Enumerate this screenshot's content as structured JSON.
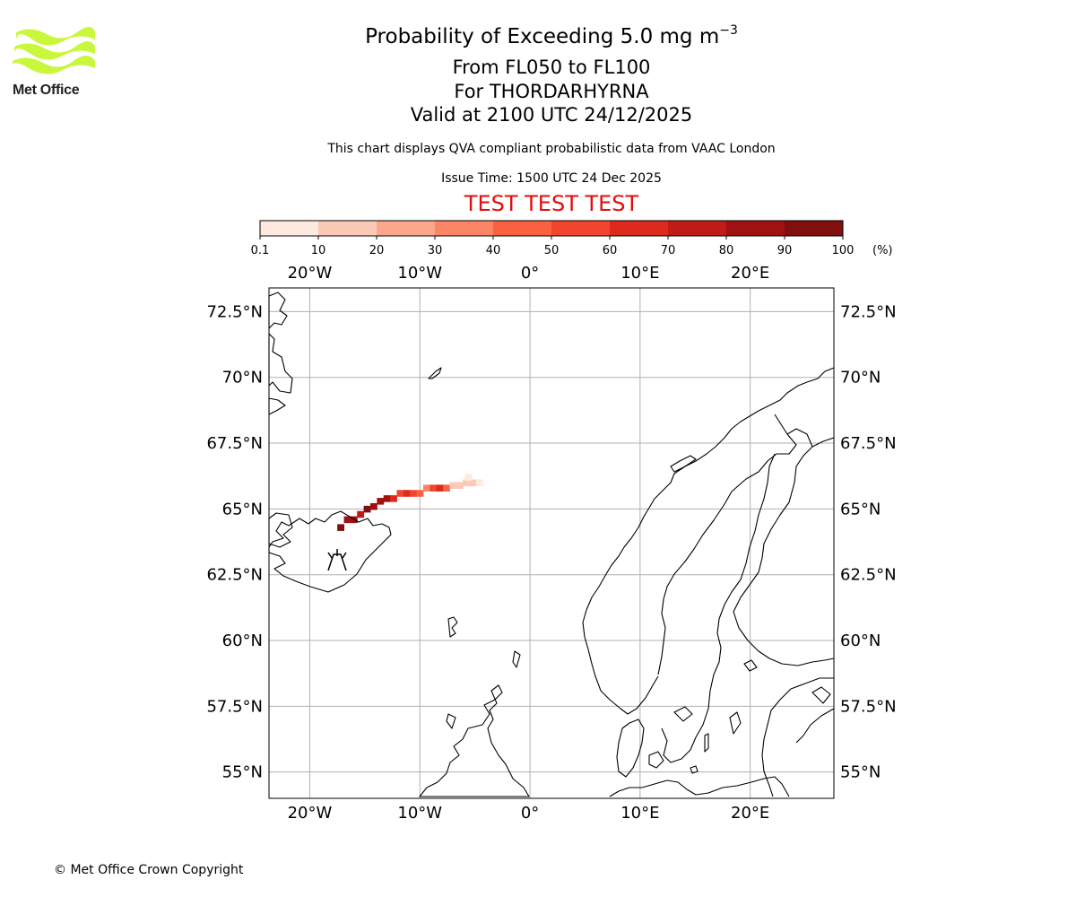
{
  "logo": {
    "text": "Met Office",
    "accent": "#c8f73c"
  },
  "title": {
    "main": "Probability of Exceeding 5.0 mg m",
    "superscript": "−3",
    "levels": "From FL050 to FL100",
    "volcano": "For THORDARHYRNA",
    "valid": "Valid at 2100 UTC 24/12/2025",
    "source": "This chart displays QVA compliant probabilistic data from VAAC London",
    "issue": "Issue Time: 1500 UTC 24 Dec 2025",
    "test": "TEST TEST TEST"
  },
  "colorbar": {
    "ticks": [
      "0.1",
      "10",
      "20",
      "30",
      "40",
      "50",
      "60",
      "70",
      "80",
      "90",
      "100"
    ],
    "unit": "(%)",
    "colors": [
      "#fee9e1",
      "#fdc9b7",
      "#fca68c",
      "#fc8565",
      "#f9613f",
      "#f2452e",
      "#dc2a1d",
      "#c11b16",
      "#a01212",
      "#801010",
      "#641008"
    ]
  },
  "axes": {
    "lon_labels": [
      {
        "lon": -20,
        "label": "20°W"
      },
      {
        "lon": -10,
        "label": "10°W"
      },
      {
        "lon": 0,
        "label": "0°"
      },
      {
        "lon": 10,
        "label": "10°E"
      },
      {
        "lon": 20,
        "label": "20°E"
      }
    ],
    "lat_labels": [
      {
        "lat": 72.5,
        "label": "72.5°N"
      },
      {
        "lat": 70,
        "label": "70°N"
      },
      {
        "lat": 67.5,
        "label": "67.5°N"
      },
      {
        "lat": 65,
        "label": "65°N"
      },
      {
        "lat": 62.5,
        "label": "62.5°N"
      },
      {
        "lat": 60,
        "label": "60°N"
      },
      {
        "lat": 57.5,
        "label": "57.5°N"
      },
      {
        "lat": 55,
        "label": "55°N"
      }
    ],
    "lon_range": [
      -23.7,
      27.6
    ],
    "lat_range": [
      54.0,
      73.4
    ]
  },
  "plume": [
    {
      "lon": -17.2,
      "lat": 64.3,
      "p": 95
    },
    {
      "lon": -16.6,
      "lat": 64.6,
      "p": 88
    },
    {
      "lon": -16.0,
      "lat": 64.6,
      "p": 80
    },
    {
      "lon": -15.4,
      "lat": 64.8,
      "p": 72
    },
    {
      "lon": -14.8,
      "lat": 65.0,
      "p": 90
    },
    {
      "lon": -14.2,
      "lat": 65.1,
      "p": 85
    },
    {
      "lon": -13.6,
      "lat": 65.3,
      "p": 88
    },
    {
      "lon": -13.0,
      "lat": 65.4,
      "p": 82
    },
    {
      "lon": -12.4,
      "lat": 65.4,
      "p": 60
    },
    {
      "lon": -11.8,
      "lat": 65.6,
      "p": 55
    },
    {
      "lon": -11.2,
      "lat": 65.6,
      "p": 62
    },
    {
      "lon": -10.6,
      "lat": 65.6,
      "p": 58
    },
    {
      "lon": -10.0,
      "lat": 65.6,
      "p": 40
    },
    {
      "lon": -9.4,
      "lat": 65.8,
      "p": 35
    },
    {
      "lon": -8.8,
      "lat": 65.8,
      "p": 50
    },
    {
      "lon": -8.2,
      "lat": 65.8,
      "p": 62
    },
    {
      "lon": -7.6,
      "lat": 65.8,
      "p": 42
    },
    {
      "lon": -7.0,
      "lat": 65.9,
      "p": 18
    },
    {
      "lon": -6.4,
      "lat": 65.9,
      "p": 14
    },
    {
      "lon": -5.8,
      "lat": 66.0,
      "p": 12
    },
    {
      "lon": -5.2,
      "lat": 66.0,
      "p": 10
    },
    {
      "lon": -4.6,
      "lat": 66.0,
      "p": 5
    },
    {
      "lon": -5.6,
      "lat": 66.2,
      "p": 5
    }
  ],
  "copyright": "© Met Office Crown Copyright"
}
